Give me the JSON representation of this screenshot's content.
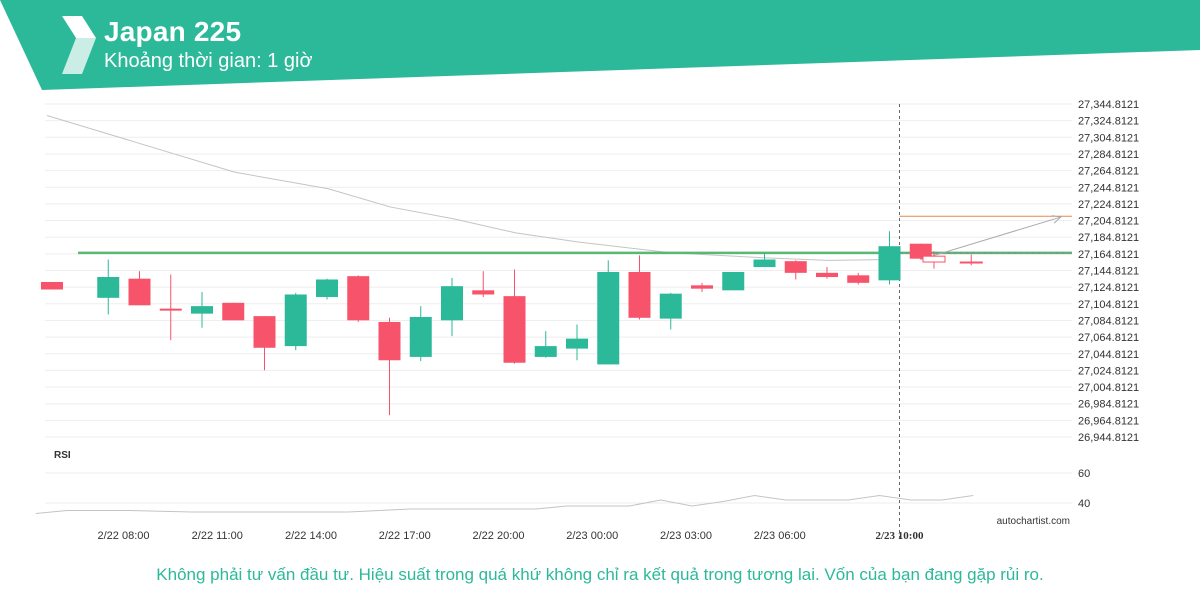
{
  "header": {
    "title": "Japan 225",
    "subtitle": "Khoảng thời gian: 1 giờ",
    "logo_icon": "autochartist-logo-icon",
    "band_color": "#2cb99a"
  },
  "chart_data": {
    "type": "candlestick",
    "price_axis_labels": [
      "27,344.8121",
      "27,324.8121",
      "27,304.8121",
      "27,284.8121",
      "27,264.8121",
      "27,244.8121",
      "27,224.8121",
      "27,204.8121",
      "27,184.8121",
      "27,164.8121",
      "27,144.8121",
      "27,124.8121",
      "27,104.8121",
      "27,084.8121",
      "27,064.8121",
      "27,044.8121",
      "27,024.8121",
      "27,004.8121",
      "26,984.8121",
      "26,964.8121",
      "26,944.8121"
    ],
    "price_axis_values": [
      27344.8121,
      27324.8121,
      27304.8121,
      27284.8121,
      27264.8121,
      27244.8121,
      27224.8121,
      27204.8121,
      27184.8121,
      27164.8121,
      27144.8121,
      27124.8121,
      27104.8121,
      27084.8121,
      27064.8121,
      27044.8121,
      27024.8121,
      27004.8121,
      26984.8121,
      26964.8121,
      26944.8121
    ],
    "ylim": [
      26940,
      27350
    ],
    "time_axis_labels": [
      {
        "label": "2/22 08:00",
        "index": 2
      },
      {
        "label": "2/22 11:00",
        "index": 5
      },
      {
        "label": "2/22 14:00",
        "index": 8
      },
      {
        "label": "2/22 17:00",
        "index": 11
      },
      {
        "label": "2/22 20:00",
        "index": 14
      },
      {
        "label": "2/23 00:00",
        "index": 17
      },
      {
        "label": "2/23 03:00",
        "index": 20
      },
      {
        "label": "2/23 06:00",
        "index": 23
      },
      {
        "label": "2/23 10:00",
        "index": 26,
        "bold": true
      }
    ],
    "candles": [
      {
        "o": 27131,
        "h": 27131,
        "l": 27122,
        "c": 27122
      },
      {
        "o": 27112,
        "h": 27158,
        "l": 27092,
        "c": 27137
      },
      {
        "o": 27135,
        "h": 27144,
        "l": 27105,
        "c": 27103
      },
      {
        "o": 27099,
        "h": 27140,
        "l": 27061,
        "c": 27097
      },
      {
        "o": 27093,
        "h": 27119,
        "l": 27076,
        "c": 27102
      },
      {
        "o": 27106,
        "h": 27106,
        "l": 27086,
        "c": 27085
      },
      {
        "o": 27090,
        "h": 27090,
        "l": 27025,
        "c": 27052
      },
      {
        "o": 27054,
        "h": 27118,
        "l": 27049,
        "c": 27116
      },
      {
        "o": 27113,
        "h": 27135,
        "l": 27110,
        "c": 27134
      },
      {
        "o": 27138,
        "h": 27139,
        "l": 27083,
        "c": 27085
      },
      {
        "o": 27083,
        "h": 27088,
        "l": 26971,
        "c": 27037
      },
      {
        "o": 27041,
        "h": 27102,
        "l": 27036,
        "c": 27089
      },
      {
        "o": 27085,
        "h": 27136,
        "l": 27066,
        "c": 27126
      },
      {
        "o": 27121,
        "h": 27144,
        "l": 27113,
        "c": 27116
      },
      {
        "o": 27114,
        "h": 27146,
        "l": 27033,
        "c": 27034
      },
      {
        "o": 27041,
        "h": 27072,
        "l": 27040,
        "c": 27054
      },
      {
        "o": 27051,
        "h": 27080,
        "l": 27037,
        "c": 27063
      },
      {
        "o": 27032,
        "h": 27157,
        "l": 27032,
        "c": 27143
      },
      {
        "o": 27143,
        "h": 27163,
        "l": 27086,
        "c": 27088
      },
      {
        "o": 27087,
        "h": 27118,
        "l": 27074,
        "c": 27117
      },
      {
        "o": 27127,
        "h": 27130,
        "l": 27119,
        "c": 27123
      },
      {
        "o": 27121,
        "h": 27143,
        "l": 27121,
        "c": 27143
      },
      {
        "o": 27149,
        "h": 27166,
        "l": 27149,
        "c": 27158
      },
      {
        "o": 27156,
        "h": 27157,
        "l": 27134,
        "c": 27142
      },
      {
        "o": 27142,
        "h": 27149,
        "l": 27135,
        "c": 27137
      },
      {
        "o": 27139,
        "h": 27142,
        "l": 27128,
        "c": 27130
      },
      {
        "o": 27133,
        "h": 27192,
        "l": 27128,
        "c": 27174
      },
      {
        "o": 27177,
        "h": 27177,
        "l": 27158,
        "c": 27159
      }
    ],
    "projected_candles": [
      {
        "o": 27162,
        "h": 27168,
        "l": 27147,
        "c": 27155
      },
      {
        "o": 27155,
        "h": 27164,
        "l": 27151,
        "c": 27154
      }
    ],
    "moving_average": [
      {
        "i": 0,
        "v": 27331
      },
      {
        "i": 3,
        "v": 27297
      },
      {
        "i": 6,
        "v": 27263
      },
      {
        "i": 9,
        "v": 27243
      },
      {
        "i": 11,
        "v": 27221
      },
      {
        "i": 13,
        "v": 27207
      },
      {
        "i": 15,
        "v": 27190
      },
      {
        "i": 17,
        "v": 27179
      },
      {
        "i": 20,
        "v": 27166
      },
      {
        "i": 23,
        "v": 27160
      },
      {
        "i": 25,
        "v": 27157
      },
      {
        "i": 27,
        "v": 27158
      }
    ],
    "support_resistance_level": 27166,
    "target_level": 27210,
    "forecast_arrow": {
      "from": {
        "i": 27,
        "v": 27158
      },
      "to": {
        "i": 31,
        "v": 27209
      }
    },
    "current_time_index": 26,
    "colors": {
      "bullish": "#2cb99a",
      "bearish": "#f7536b",
      "level": "#5ab877",
      "target": "#e8874a",
      "ma": "#c4c4c4",
      "grid": "#eeeeee",
      "axis_text": "#333333"
    },
    "rsi": {
      "label": "RSI",
      "axis_labels": [
        "60",
        "40"
      ],
      "axis_values": [
        60,
        40
      ],
      "ylim": [
        30,
        70
      ],
      "values": [
        {
          "i": -1,
          "v": 33
        },
        {
          "i": 0,
          "v": 35
        },
        {
          "i": 2,
          "v": 35
        },
        {
          "i": 4,
          "v": 34
        },
        {
          "i": 6,
          "v": 34
        },
        {
          "i": 9,
          "v": 34
        },
        {
          "i": 11,
          "v": 36
        },
        {
          "i": 13,
          "v": 36
        },
        {
          "i": 15,
          "v": 36
        },
        {
          "i": 16,
          "v": 38
        },
        {
          "i": 18,
          "v": 38
        },
        {
          "i": 19,
          "v": 42
        },
        {
          "i": 20,
          "v": 38
        },
        {
          "i": 21,
          "v": 41
        },
        {
          "i": 22,
          "v": 45
        },
        {
          "i": 23,
          "v": 42
        },
        {
          "i": 24,
          "v": 42
        },
        {
          "i": 25,
          "v": 42
        },
        {
          "i": 26,
          "v": 45
        },
        {
          "i": 27,
          "v": 42
        },
        {
          "i": 28,
          "v": 42
        },
        {
          "i": 29,
          "v": 45
        }
      ]
    }
  },
  "watermark": "autochartist.com",
  "disclaimer": "Không phải tư vấn đầu tư. Hiệu suất trong quá khứ không chỉ ra kết quả trong tương lai. Vốn của bạn đang gặp rủi ro."
}
